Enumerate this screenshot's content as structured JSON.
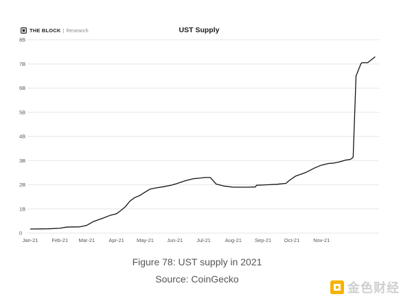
{
  "header": {
    "brand_name": "THE BLOCK",
    "brand_sub": "Research"
  },
  "caption": {
    "line1": "Figure 78: UST supply in 2021",
    "line2": "Source: CoinGecko"
  },
  "watermark": {
    "text": "金色财经"
  },
  "colors": {
    "line": "#111111",
    "grid": "#e6e6e6",
    "axis_text": "#555555",
    "watermark": "#f5b400"
  },
  "chart_data": {
    "type": "line",
    "title": "UST Supply",
    "xlabel": "",
    "ylabel": "",
    "ylim": [
      0,
      8
    ],
    "ytick_values": [
      0,
      1,
      2,
      3,
      4,
      5,
      6,
      7,
      8
    ],
    "ytick_labels": [
      "0",
      "1B",
      "2B",
      "3B",
      "4B",
      "5B",
      "6B",
      "7B",
      "8B"
    ],
    "xlim": [
      "2021-01-01",
      "2021-12-31"
    ],
    "xtick_values": [
      "2021-01-01",
      "2021-02-01",
      "2021-03-01",
      "2021-04-01",
      "2021-05-01",
      "2021-06-01",
      "2021-07-01",
      "2021-08-01",
      "2021-09-01",
      "2021-10-01",
      "2021-11-01"
    ],
    "xtick_labels": [
      "Jan-21",
      "Feb-21",
      "Mar-21",
      "Apr-21",
      "May-21",
      "Jun-21",
      "Jul-21",
      "Aug-21",
      "Sep-21",
      "Oct-21",
      "Nov-21"
    ],
    "grid": true,
    "series": [
      {
        "color": "#111111",
        "points": [
          [
            "2021-01-01",
            0.17
          ],
          [
            "2021-01-20",
            0.18
          ],
          [
            "2021-02-01",
            0.2
          ],
          [
            "2021-02-08",
            0.25
          ],
          [
            "2021-02-22",
            0.26
          ],
          [
            "2021-03-01",
            0.32
          ],
          [
            "2021-03-08",
            0.48
          ],
          [
            "2021-03-18",
            0.62
          ],
          [
            "2021-03-25",
            0.73
          ],
          [
            "2021-04-01",
            0.8
          ],
          [
            "2021-04-05",
            0.92
          ],
          [
            "2021-04-10",
            1.08
          ],
          [
            "2021-04-15",
            1.32
          ],
          [
            "2021-04-20",
            1.47
          ],
          [
            "2021-04-25",
            1.55
          ],
          [
            "2021-05-01",
            1.7
          ],
          [
            "2021-05-06",
            1.82
          ],
          [
            "2021-05-12",
            1.87
          ],
          [
            "2021-05-20",
            1.92
          ],
          [
            "2021-05-29",
            1.99
          ],
          [
            "2021-06-03",
            2.05
          ],
          [
            "2021-06-12",
            2.17
          ],
          [
            "2021-06-20",
            2.25
          ],
          [
            "2021-06-28",
            2.28
          ],
          [
            "2021-07-02",
            2.3
          ],
          [
            "2021-07-08",
            2.3
          ],
          [
            "2021-07-14",
            2.03
          ],
          [
            "2021-07-22",
            1.95
          ],
          [
            "2021-08-01",
            1.9
          ],
          [
            "2021-08-15",
            1.9
          ],
          [
            "2021-08-24",
            1.91
          ],
          [
            "2021-08-25",
            1.98
          ],
          [
            "2021-09-05",
            2.0
          ],
          [
            "2021-09-15",
            2.02
          ],
          [
            "2021-09-25",
            2.06
          ],
          [
            "2021-09-28",
            2.17
          ],
          [
            "2021-10-05",
            2.36
          ],
          [
            "2021-10-15",
            2.5
          ],
          [
            "2021-10-25",
            2.7
          ],
          [
            "2021-10-31",
            2.8
          ],
          [
            "2021-11-08",
            2.88
          ],
          [
            "2021-11-14",
            2.9
          ],
          [
            "2021-11-20",
            2.95
          ],
          [
            "2021-11-26",
            3.02
          ],
          [
            "2021-12-01",
            3.05
          ],
          [
            "2021-12-03",
            3.1
          ],
          [
            "2021-12-04",
            3.15
          ],
          [
            "2021-12-07",
            6.5
          ],
          [
            "2021-12-12",
            7.0
          ],
          [
            "2021-12-13",
            7.05
          ],
          [
            "2021-12-19",
            7.05
          ],
          [
            "2021-12-27",
            7.3
          ]
        ]
      }
    ]
  }
}
